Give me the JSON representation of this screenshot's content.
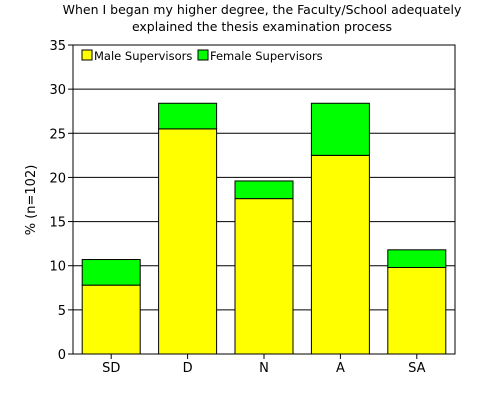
{
  "chart_data": {
    "type": "bar",
    "stacked": true,
    "title_lines": [
      "When I began my higher degree, the Faculty/School adequately",
      "explained the thesis examination process"
    ],
    "xlabel": "",
    "ylabel": "% (n=102)",
    "ylim": [
      0,
      35
    ],
    "yticks": [
      0,
      5,
      10,
      15,
      20,
      25,
      30,
      35
    ],
    "categories": [
      "SD",
      "D",
      "N",
      "A",
      "SA"
    ],
    "series": [
      {
        "name": "Male Supervisors",
        "color": "#ffff00",
        "values": [
          7.8,
          25.5,
          17.6,
          22.5,
          9.8
        ]
      },
      {
        "name": "Female Supervisors",
        "color": "#00ff00",
        "values": [
          2.9,
          2.9,
          2.0,
          5.9,
          2.0
        ]
      }
    ],
    "grid": true,
    "legend_position": "top-left"
  }
}
